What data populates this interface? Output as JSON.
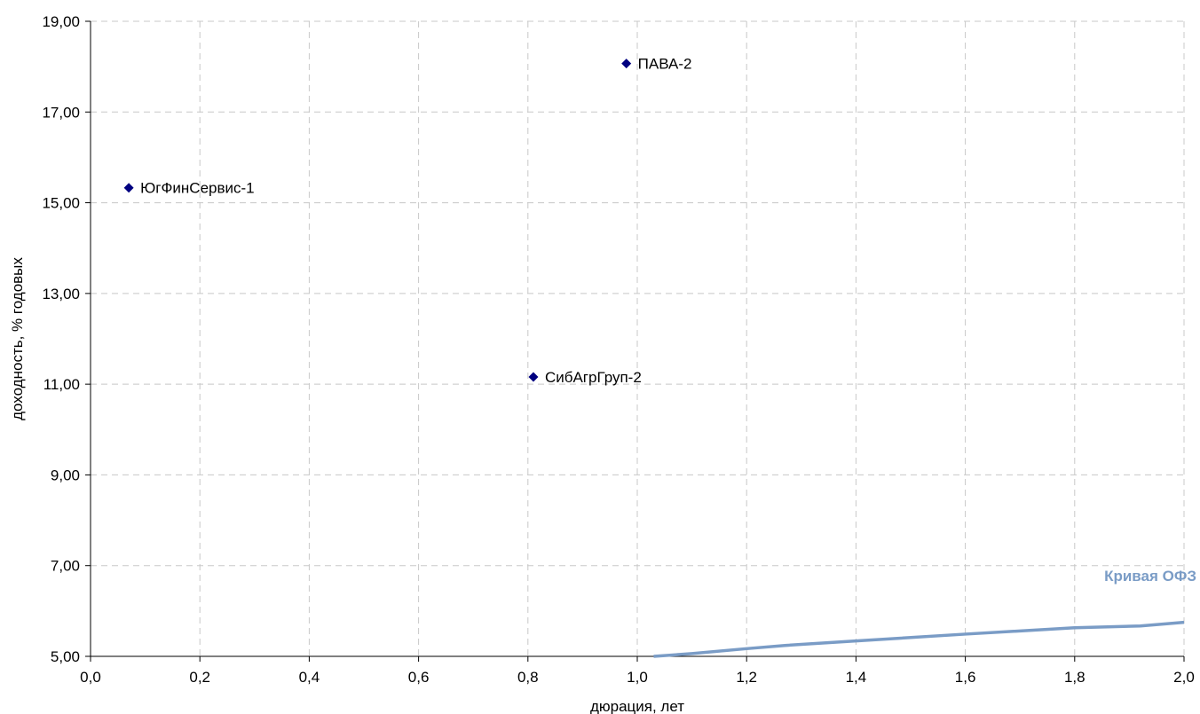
{
  "chart_data": {
    "type": "scatter",
    "xlabel": "дюрация, лет",
    "ylabel": "доходность, % годовых",
    "xlim": [
      0,
      2
    ],
    "ylim": [
      5,
      19
    ],
    "x_ticks": [
      "0,0",
      "0,2",
      "0,4",
      "0,6",
      "0,8",
      "1,0",
      "1,2",
      "1,4",
      "1,6",
      "1,8",
      "2,0"
    ],
    "y_ticks": [
      "5,00",
      "7,00",
      "9,00",
      "11,00",
      "13,00",
      "15,00",
      "17,00",
      "19,00"
    ],
    "grid": true,
    "points": [
      {
        "label": "ЮгФинСервис-1",
        "x": 0.07,
        "y": 15.33
      },
      {
        "label": "ПАВА-2",
        "x": 0.98,
        "y": 18.07
      },
      {
        "label": "СибАгрГруп-2",
        "x": 0.81,
        "y": 11.16
      }
    ],
    "curve": {
      "name": "Кривая ОФЗ",
      "x": [
        1.03,
        1.1,
        1.2,
        1.27,
        1.4,
        1.6,
        1.8,
        1.83,
        1.92,
        2.0
      ],
      "y": [
        5.0,
        5.06,
        5.17,
        5.24,
        5.34,
        5.49,
        5.63,
        5.64,
        5.67,
        5.75
      ]
    },
    "colors": {
      "marker": "#000080",
      "curve": "#7a9cc6",
      "grid": "#c8c8c8"
    }
  }
}
